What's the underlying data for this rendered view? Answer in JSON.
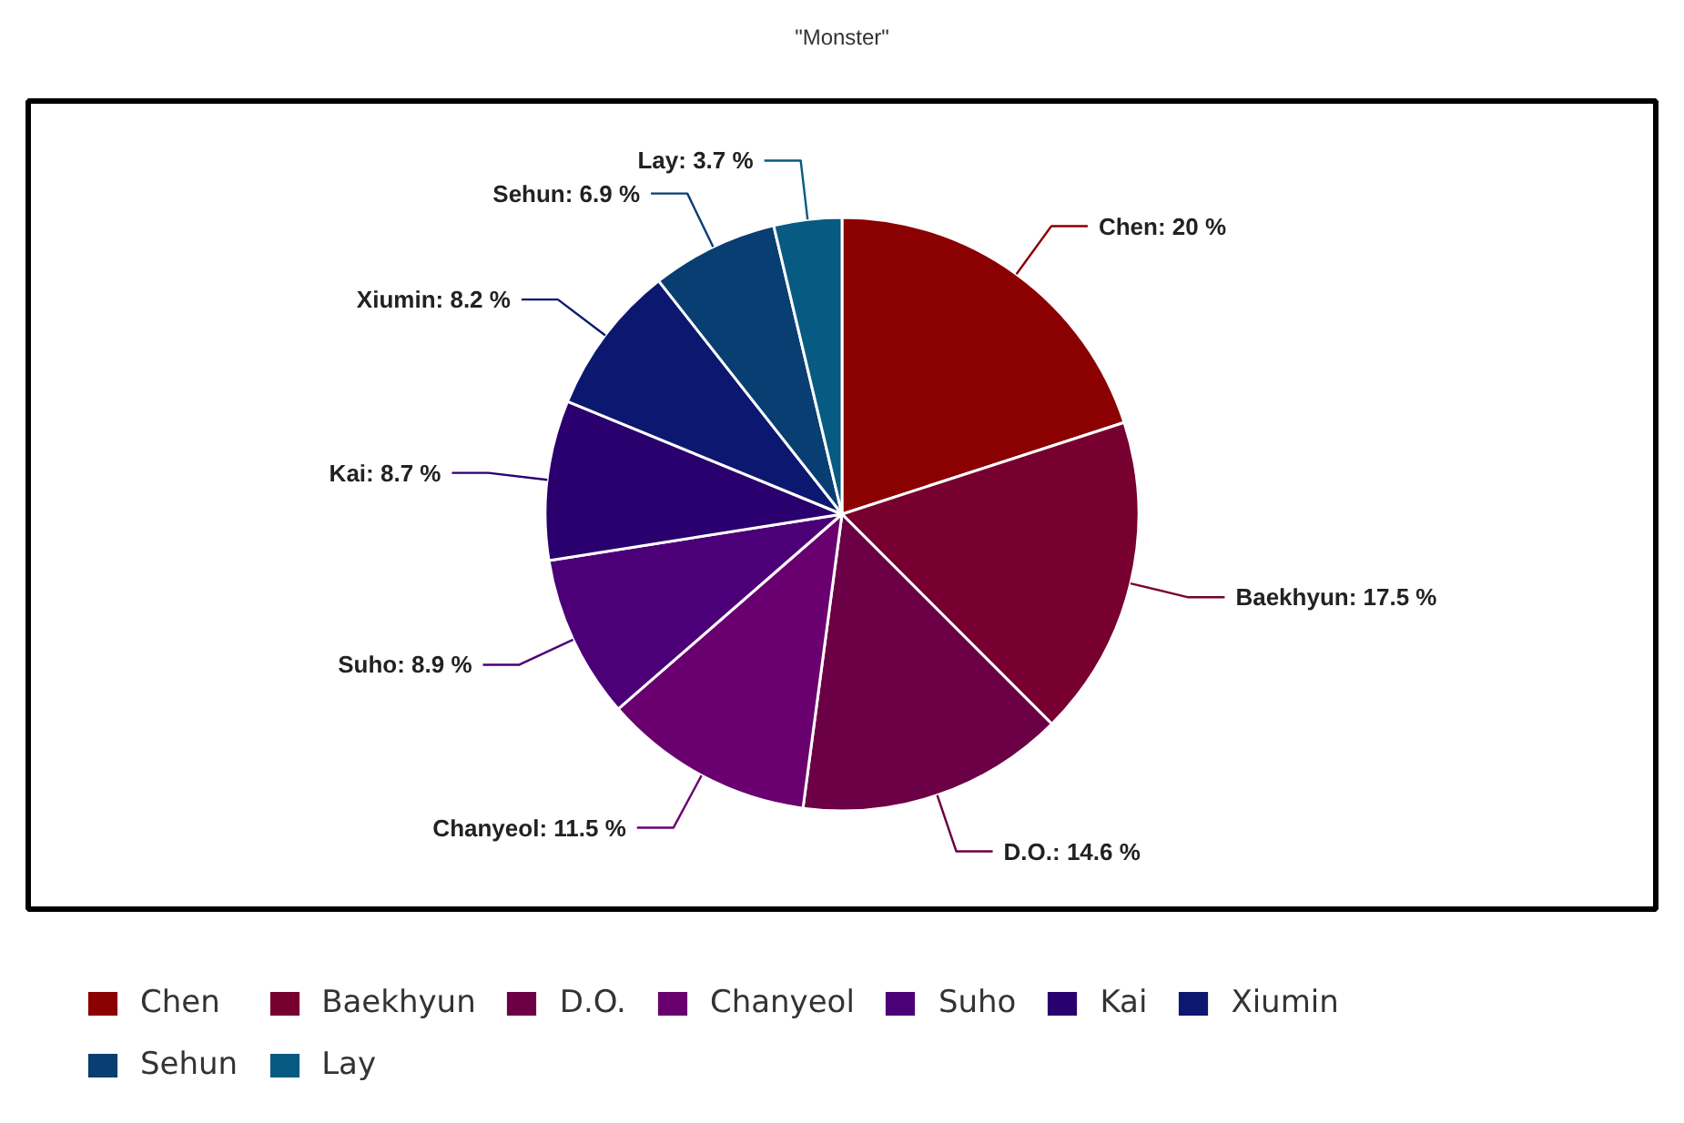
{
  "chart_data": {
    "type": "pie",
    "title": "\"Monster\"",
    "categories": [
      "Chen",
      "Baekhyun",
      "D.O.",
      "Chanyeol",
      "Suho",
      "Kai",
      "Xiumin",
      "Sehun",
      "Lay"
    ],
    "values": [
      20,
      17.5,
      14.6,
      11.5,
      8.9,
      8.7,
      8.2,
      6.9,
      3.7
    ],
    "colors": [
      "#8b0000",
      "#780030",
      "#6c0046",
      "#6a0070",
      "#4c0078",
      "#2a006e",
      "#0c1870",
      "#083e72",
      "#075a82"
    ],
    "value_labels": [
      "Chen: 20 %",
      "Baekhyun: 17.5 %",
      "D.O.: 14.6 %",
      "Chanyeol: 11.5 %",
      "Suho: 8.9 %",
      "Kai: 8.7 %",
      "Xiumin: 8.2 %",
      "Sehun: 6.9 %",
      "Lay: 3.7 %"
    ],
    "legend": "bottom"
  }
}
